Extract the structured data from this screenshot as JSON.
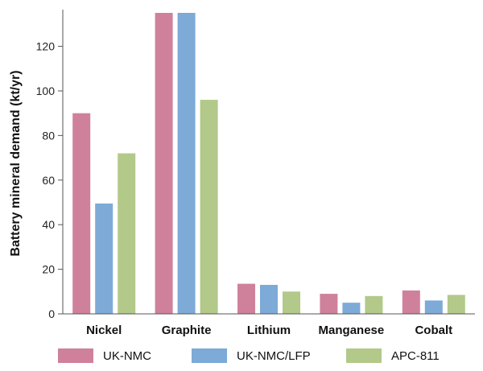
{
  "chart_data": {
    "type": "bar",
    "title": "",
    "xlabel": "",
    "ylabel": "Battery mineral demand (kt/yr)",
    "categories": [
      "Nickel",
      "Graphite",
      "Lithium",
      "Manganese",
      "Cobalt"
    ],
    "series": [
      {
        "name": "UK-NMC",
        "color": "#cf819b",
        "values": [
          90,
          135,
          13.5,
          9,
          10.5
        ]
      },
      {
        "name": "UK-NMC/LFP",
        "color": "#7daad7",
        "values": [
          49.5,
          135,
          13,
          5,
          6
        ]
      },
      {
        "name": "APC-811",
        "color": "#b2c98a",
        "values": [
          72,
          96,
          10,
          8,
          8.5
        ]
      }
    ],
    "ylim": [
      0,
      135
    ],
    "yticks": [
      0,
      20,
      40,
      60,
      80,
      100,
      120
    ],
    "grid": false,
    "legend_position": "bottom"
  }
}
